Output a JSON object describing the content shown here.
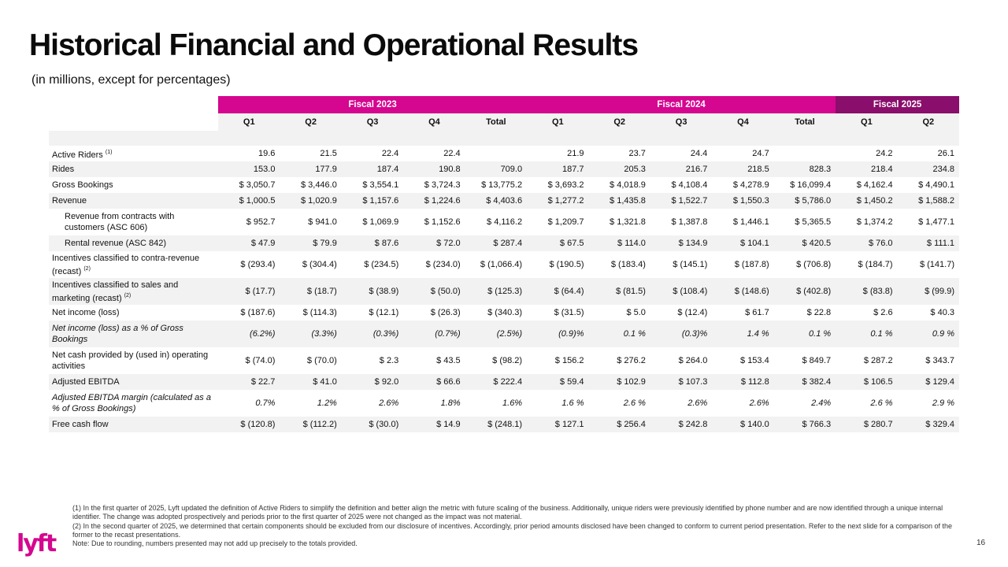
{
  "title": "Historical Financial and Operational Results",
  "subtitle": "(in millions, except for percentages)",
  "fiscal_headers": [
    "Fiscal 2023",
    "Fiscal 2024",
    "Fiscal 2025"
  ],
  "quarter_headers": [
    "Q1",
    "Q2",
    "Q3",
    "Q4",
    "Total",
    "Q1",
    "Q2",
    "Q3",
    "Q4",
    "Total",
    "Q1",
    "Q2"
  ],
  "rows": [
    {
      "label": "Active Riders",
      "sup": "(1)",
      "values": [
        "19.6",
        "21.5",
        "22.4",
        "22.4",
        "",
        "21.9",
        "23.7",
        "24.4",
        "24.7",
        "",
        "24.2",
        "26.1"
      ]
    },
    {
      "label": "Rides",
      "sup": "",
      "values": [
        "153.0",
        "177.9",
        "187.4",
        "190.8",
        "709.0",
        "187.7",
        "205.3",
        "216.7",
        "218.5",
        "828.3",
        "218.4",
        "234.8"
      ]
    },
    {
      "label": "Gross Bookings",
      "sup": "",
      "values": [
        "$ 3,050.7",
        "$ 3,446.0",
        "$ 3,554.1",
        "$ 3,724.3",
        "$ 13,775.2",
        "$ 3,693.2",
        "$ 4,018.9",
        "$ 4,108.4",
        "$ 4,278.9",
        "$ 16,099.4",
        "$ 4,162.4",
        "$ 4,490.1"
      ]
    },
    {
      "label": "Revenue",
      "sup": "",
      "values": [
        "$ 1,000.5",
        "$ 1,020.9",
        "$ 1,157.6",
        "$ 1,224.6",
        "$ 4,403.6",
        "$ 1,277.2",
        "$ 1,435.8",
        "$ 1,522.7",
        "$ 1,550.3",
        "$ 5,786.0",
        "$ 1,450.2",
        "$ 1,588.2"
      ]
    },
    {
      "label": "Revenue from contracts with customers (ASC 606)",
      "sup": "",
      "values": [
        "$ 952.7",
        "$ 941.0",
        "$ 1,069.9",
        "$ 1,152.6",
        "$ 4,116.2",
        "$ 1,209.7",
        "$ 1,321.8",
        "$ 1,387.8",
        "$ 1,446.1",
        "$ 5,365.5",
        "$ 1,374.2",
        "$ 1,477.1"
      ]
    },
    {
      "label": "Rental revenue (ASC 842)",
      "sup": "",
      "values": [
        "$ 47.9",
        "$ 79.9",
        "$ 87.6",
        "$ 72.0",
        "$ 287.4",
        "$ 67.5",
        "$ 114.0",
        "$ 134.9",
        "$ 104.1",
        "$ 420.5",
        "$ 76.0",
        "$ 111.1"
      ]
    },
    {
      "label": "Incentives classified to contra-revenue (recast)",
      "sup": "(2)",
      "values": [
        "$ (293.4)",
        "$ (304.4)",
        "$ (234.5)",
        "$ (234.0)",
        "$ (1,066.4)",
        "$ (190.5)",
        "$ (183.4)",
        "$ (145.1)",
        "$ (187.8)",
        "$ (706.8)",
        "$ (184.7)",
        "$ (141.7)"
      ]
    },
    {
      "label": "Incentives classified to sales and marketing (recast)",
      "sup": "(2)",
      "values": [
        "$ (17.7)",
        "$ (18.7)",
        "$ (38.9)",
        "$ (50.0)",
        "$ (125.3)",
        "$ (64.4)",
        "$ (81.5)",
        "$ (108.4)",
        "$ (148.6)",
        "$ (402.8)",
        "$ (83.8)",
        "$ (99.9)"
      ]
    },
    {
      "label": "Net income (loss)",
      "sup": "",
      "values": [
        "$ (187.6)",
        "$ (114.3)",
        "$ (12.1)",
        "$ (26.3)",
        "$ (340.3)",
        "$ (31.5)",
        "$ 5.0",
        "$ (12.4)",
        "$ 61.7",
        "$ 22.8",
        "$ 2.6",
        "$ 40.3"
      ]
    },
    {
      "label": "Net income (loss) as a % of Gross Bookings",
      "sup": "",
      "values": [
        "(6.2%)",
        "(3.3%)",
        "(0.3%)",
        "(0.7%)",
        "(2.5%)",
        "(0.9)%",
        "0.1 %",
        "(0.3)%",
        "1.4 %",
        "0.1 %",
        "0.1 %",
        "0.9 %"
      ]
    },
    {
      "label": "Net cash provided by (used in) operating activities",
      "sup": "",
      "values": [
        "$ (74.0)",
        "$ (70.0)",
        "$ 2.3",
        "$ 43.5",
        "$ (98.2)",
        "$ 156.2",
        "$ 276.2",
        "$ 264.0",
        "$ 153.4",
        "$ 849.7",
        "$ 287.2",
        "$ 343.7"
      ]
    },
    {
      "label": "Adjusted EBITDA",
      "sup": "",
      "values": [
        "$ 22.7",
        "$ 41.0",
        "$ 92.0",
        "$ 66.6",
        "$ 222.4",
        "$ 59.4",
        "$ 102.9",
        "$ 107.3",
        "$ 112.8",
        "$ 382.4",
        "$ 106.5",
        "$ 129.4"
      ]
    },
    {
      "label": "Adjusted EBITDA margin (calculated as a % of Gross Bookings)",
      "sup": "",
      "values": [
        "0.7%",
        "1.2%",
        "2.6%",
        "1.8%",
        "1.6%",
        "1.6 %",
        "2.6 %",
        "2.6%",
        "2.6%",
        "2.4%",
        "2.6 %",
        "2.9 %"
      ]
    },
    {
      "label": "Free cash flow",
      "sup": "",
      "values": [
        "$ (120.8)",
        "$ (112.2)",
        "$ (30.0)",
        "$ 14.9",
        "$ (248.1)",
        "$ 127.1",
        "$ 256.4",
        "$ 242.8",
        "$ 140.0",
        "$ 766.3",
        "$ 280.7",
        "$ 329.4"
      ]
    }
  ],
  "footnotes": [
    "(1) In the first quarter of 2025, Lyft updated the definition of Active Riders to simplify the definition and better align the metric with future scaling of the business. Additionally, unique riders were previously identified by phone number and are now identified through a unique internal identifier. The change was adopted prospectively and periods prior to the first quarter of 2025 were not changed as the impact was not material.",
    "(2) In the second quarter of 2025, we determined that certain components should be excluded from our disclosure of incentives. Accordingly, prior period amounts disclosed have been changed to conform to current period presentation. Refer to the next slide for a comparison of the former to the recast presentations.",
    "Note: Due to rounding, numbers presented may not add up precisely to the totals provided."
  ],
  "logo_text": "lyft",
  "page_number": "16",
  "colors": {
    "brand_pink": "#d5068f",
    "brand_purple": "#8a0e6b",
    "row_shade": "#f2f2f2"
  }
}
